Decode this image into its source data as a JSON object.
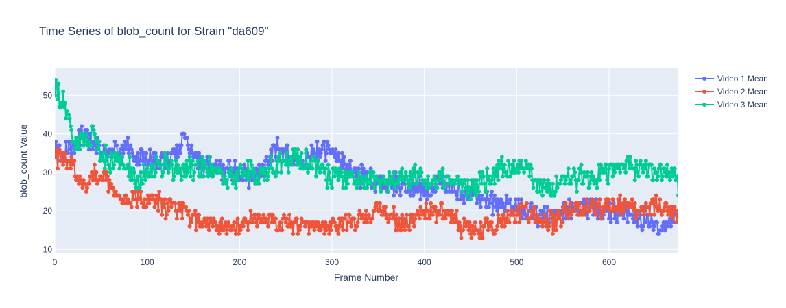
{
  "chart_data": {
    "type": "line",
    "title": "Time Series of blob_count for Strain \"da609\"",
    "xlabel": "Frame Number",
    "ylabel": "blob_count Value",
    "xlim": [
      0,
      675
    ],
    "ylim": [
      9,
      57
    ],
    "x_ticks": [
      0,
      100,
      200,
      300,
      400,
      500,
      600
    ],
    "y_ticks": [
      10,
      20,
      30,
      40,
      50
    ],
    "grid": true,
    "legend_position": "top-right",
    "background": "#e5ecf6",
    "series": [
      {
        "name": "Video 1 Mean",
        "color": "#636efa",
        "keyframes": [
          [
            0,
            36
          ],
          [
            10,
            35
          ],
          [
            20,
            38
          ],
          [
            30,
            40
          ],
          [
            40,
            37
          ],
          [
            50,
            36
          ],
          [
            60,
            35
          ],
          [
            70,
            36
          ],
          [
            80,
            37
          ],
          [
            90,
            33
          ],
          [
            100,
            34
          ],
          [
            110,
            33
          ],
          [
            120,
            33
          ],
          [
            130,
            35
          ],
          [
            140,
            39
          ],
          [
            150,
            35
          ],
          [
            160,
            32
          ],
          [
            170,
            31
          ],
          [
            180,
            31
          ],
          [
            190,
            31
          ],
          [
            200,
            30
          ],
          [
            210,
            29
          ],
          [
            220,
            30
          ],
          [
            230,
            32
          ],
          [
            240,
            37
          ],
          [
            250,
            35
          ],
          [
            260,
            34
          ],
          [
            270,
            33
          ],
          [
            280,
            35
          ],
          [
            290,
            36
          ],
          [
            300,
            35
          ],
          [
            310,
            33
          ],
          [
            320,
            31
          ],
          [
            330,
            29
          ],
          [
            340,
            28
          ],
          [
            350,
            27
          ],
          [
            360,
            27
          ],
          [
            370,
            27
          ],
          [
            380,
            26
          ],
          [
            390,
            26
          ],
          [
            400,
            25
          ],
          [
            410,
            26
          ],
          [
            420,
            27
          ],
          [
            430,
            26
          ],
          [
            440,
            25
          ],
          [
            450,
            24
          ],
          [
            460,
            23
          ],
          [
            470,
            23
          ],
          [
            480,
            22
          ],
          [
            490,
            21
          ],
          [
            500,
            21
          ],
          [
            510,
            20
          ],
          [
            520,
            19
          ],
          [
            530,
            19
          ],
          [
            540,
            20
          ],
          [
            550,
            20
          ],
          [
            560,
            21
          ],
          [
            570,
            21
          ],
          [
            580,
            21
          ],
          [
            590,
            20
          ],
          [
            600,
            20
          ],
          [
            610,
            19
          ],
          [
            620,
            19
          ],
          [
            630,
            18
          ],
          [
            640,
            18
          ],
          [
            650,
            17
          ],
          [
            660,
            16
          ],
          [
            670,
            18
          ],
          [
            675,
            18
          ]
        ],
        "noise": 2.2
      },
      {
        "name": "Video 2 Mean",
        "color": "#ef553b",
        "keyframes": [
          [
            0,
            34
          ],
          [
            10,
            33
          ],
          [
            20,
            32
          ],
          [
            30,
            26
          ],
          [
            40,
            30
          ],
          [
            50,
            29
          ],
          [
            60,
            27
          ],
          [
            70,
            23
          ],
          [
            80,
            23
          ],
          [
            90,
            23
          ],
          [
            100,
            22
          ],
          [
            110,
            22
          ],
          [
            120,
            21
          ],
          [
            130,
            21
          ],
          [
            140,
            20
          ],
          [
            150,
            18
          ],
          [
            160,
            17
          ],
          [
            170,
            17
          ],
          [
            180,
            16
          ],
          [
            190,
            15
          ],
          [
            200,
            16
          ],
          [
            210,
            17
          ],
          [
            220,
            18
          ],
          [
            230,
            18
          ],
          [
            240,
            17
          ],
          [
            250,
            17
          ],
          [
            260,
            16
          ],
          [
            270,
            17
          ],
          [
            280,
            17
          ],
          [
            290,
            15
          ],
          [
            300,
            16
          ],
          [
            310,
            17
          ],
          [
            320,
            17
          ],
          [
            330,
            18
          ],
          [
            340,
            19
          ],
          [
            350,
            21
          ],
          [
            360,
            20
          ],
          [
            370,
            17
          ],
          [
            380,
            16
          ],
          [
            390,
            18
          ],
          [
            400,
            19
          ],
          [
            410,
            20
          ],
          [
            420,
            20
          ],
          [
            430,
            18
          ],
          [
            440,
            16
          ],
          [
            450,
            15
          ],
          [
            460,
            15
          ],
          [
            470,
            16
          ],
          [
            480,
            17
          ],
          [
            490,
            18
          ],
          [
            500,
            20
          ],
          [
            510,
            20
          ],
          [
            520,
            19
          ],
          [
            530,
            18
          ],
          [
            540,
            17
          ],
          [
            550,
            19
          ],
          [
            560,
            21
          ],
          [
            570,
            21
          ],
          [
            580,
            21
          ],
          [
            590,
            20
          ],
          [
            600,
            21
          ],
          [
            610,
            21
          ],
          [
            620,
            21
          ],
          [
            630,
            20
          ],
          [
            640,
            21
          ],
          [
            650,
            22
          ],
          [
            660,
            21
          ],
          [
            670,
            20
          ],
          [
            675,
            18
          ]
        ],
        "noise": 2.0
      },
      {
        "name": "Video 3 Mean",
        "color": "#00cc96",
        "keyframes": [
          [
            0,
            52
          ],
          [
            5,
            50
          ],
          [
            10,
            47
          ],
          [
            15,
            43
          ],
          [
            20,
            38
          ],
          [
            30,
            38
          ],
          [
            40,
            39
          ],
          [
            50,
            34
          ],
          [
            60,
            32
          ],
          [
            70,
            33
          ],
          [
            80,
            31
          ],
          [
            90,
            27
          ],
          [
            100,
            30
          ],
          [
            110,
            33
          ],
          [
            120,
            32
          ],
          [
            130,
            31
          ],
          [
            140,
            31
          ],
          [
            150,
            30
          ],
          [
            160,
            31
          ],
          [
            170,
            31
          ],
          [
            180,
            30
          ],
          [
            190,
            29
          ],
          [
            200,
            30
          ],
          [
            210,
            30
          ],
          [
            220,
            29
          ],
          [
            230,
            30
          ],
          [
            240,
            32
          ],
          [
            250,
            32
          ],
          [
            260,
            33
          ],
          [
            270,
            33
          ],
          [
            280,
            32
          ],
          [
            290,
            30
          ],
          [
            300,
            29
          ],
          [
            310,
            29
          ],
          [
            320,
            29
          ],
          [
            330,
            28
          ],
          [
            340,
            28
          ],
          [
            350,
            28
          ],
          [
            360,
            27
          ],
          [
            370,
            28
          ],
          [
            380,
            29
          ],
          [
            390,
            29
          ],
          [
            400,
            28
          ],
          [
            410,
            27
          ],
          [
            420,
            28
          ],
          [
            430,
            28
          ],
          [
            440,
            27
          ],
          [
            450,
            26
          ],
          [
            460,
            27
          ],
          [
            470,
            28
          ],
          [
            480,
            30
          ],
          [
            490,
            31
          ],
          [
            500,
            31
          ],
          [
            510,
            31
          ],
          [
            520,
            28
          ],
          [
            530,
            26
          ],
          [
            540,
            26
          ],
          [
            550,
            28
          ],
          [
            560,
            28
          ],
          [
            570,
            29
          ],
          [
            580,
            28
          ],
          [
            590,
            29
          ],
          [
            600,
            30
          ],
          [
            610,
            31
          ],
          [
            620,
            32
          ],
          [
            630,
            31
          ],
          [
            640,
            31
          ],
          [
            650,
            31
          ],
          [
            660,
            31
          ],
          [
            670,
            29
          ],
          [
            675,
            26
          ]
        ],
        "noise": 2.4
      }
    ]
  }
}
